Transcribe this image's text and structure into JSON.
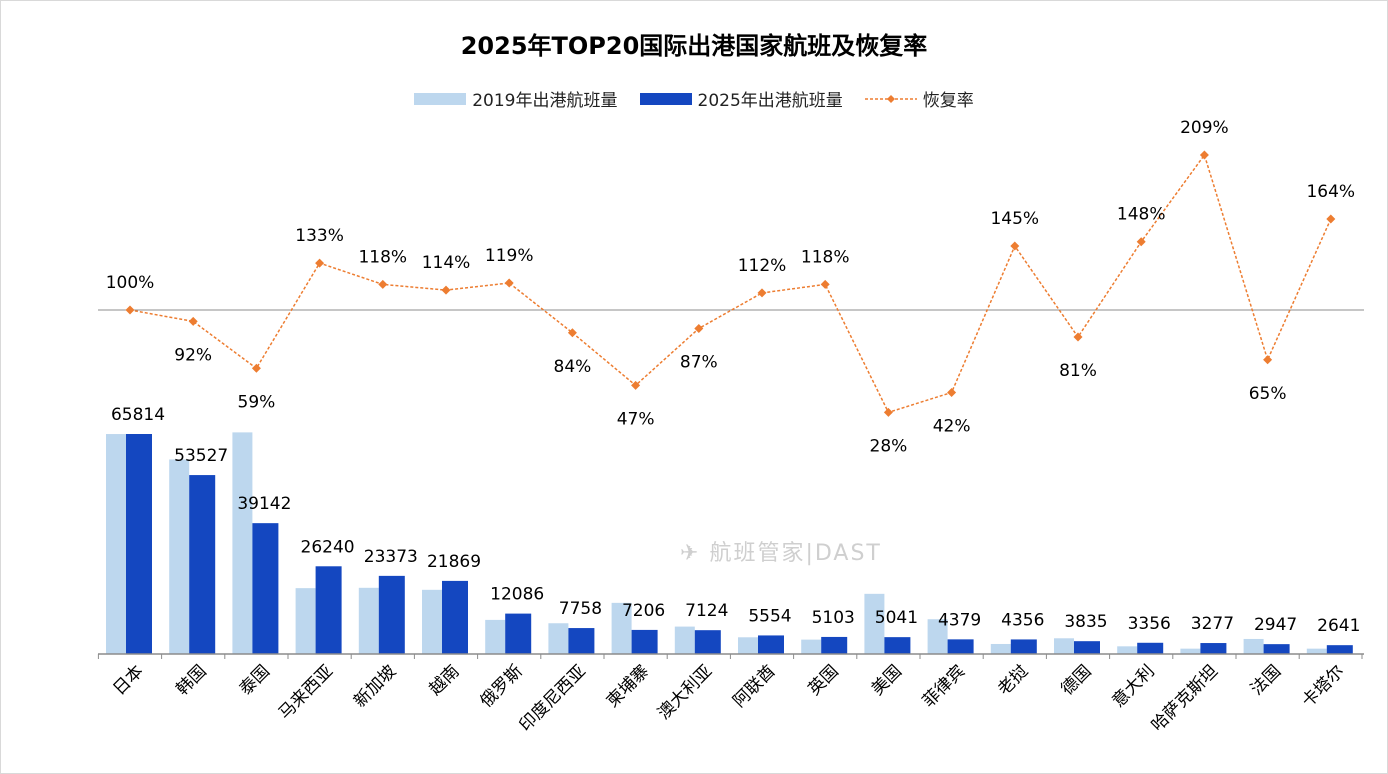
{
  "chart_data": {
    "type": "bar+line",
    "title": "2025年TOP20国际出港国家航班及恢复率",
    "legend_position": "top",
    "categories": [
      "日本",
      "韩国",
      "泰国",
      "马来西亚",
      "新加坡",
      "越南",
      "俄罗斯",
      "印度尼西亚",
      "柬埔寨",
      "澳大利亚",
      "阿联酋",
      "英国",
      "美国",
      "菲律宾",
      "老挝",
      "德国",
      "意大利",
      "哈萨克斯坦",
      "法国",
      "卡塔尔"
    ],
    "series": [
      {
        "name": "2019年出港航班量",
        "type": "bar",
        "color": "#bdd7ee",
        "values": [
          65800,
          58200,
          66300,
          19700,
          19800,
          19200,
          10200,
          9200,
          15300,
          8200,
          5000,
          4300,
          18000,
          10400,
          3000,
          4700,
          2300,
          1600,
          4500,
          1600
        ]
      },
      {
        "name": "2025年出港航班量",
        "type": "bar",
        "color": "#1447c0",
        "values": [
          65814,
          53527,
          39142,
          26240,
          23373,
          21869,
          12086,
          7758,
          7206,
          7124,
          5554,
          5103,
          5041,
          4379,
          4356,
          3835,
          3356,
          3277,
          2947,
          2641
        ],
        "labels": [
          "65814",
          "53527",
          "39142",
          "26240",
          "23373",
          "21869",
          "12086",
          "7758",
          "7206",
          "7124",
          "5554",
          "5103",
          "5041",
          "4379",
          "4356",
          "3835",
          "3356",
          "3277",
          "2947",
          "2641"
        ]
      },
      {
        "name": "恢复率",
        "type": "line",
        "style": "dashed",
        "marker": "diamond",
        "color": "#ed7d31",
        "values": [
          100,
          92,
          59,
          133,
          118,
          114,
          119,
          84,
          47,
          87,
          112,
          118,
          28,
          42,
          145,
          81,
          148,
          209,
          65,
          164
        ],
        "labels": [
          "100%",
          "92%",
          "59%",
          "133%",
          "118%",
          "114%",
          "119%",
          "84%",
          "47%",
          "87%",
          "112%",
          "118%",
          "28%",
          "42%",
          "145%",
          "81%",
          "148%",
          "209%",
          "65%",
          "164%"
        ]
      }
    ],
    "reference_line": 100,
    "grid": false
  },
  "watermark": "航班管家|DAST"
}
